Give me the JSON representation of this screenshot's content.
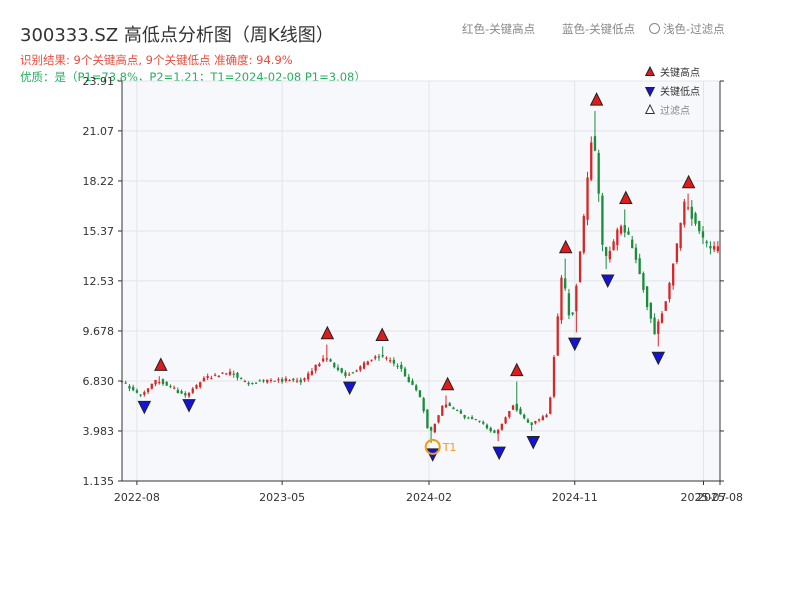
{
  "header": {
    "title": "300333.SZ 高低点分析图（周K线图）",
    "result_line": "识别结果: 9个关键高点, 9个关键低点  准确度: 94.9%",
    "quality_line": "优质：是（P1=73.8%，P2=1.21；T1=2024-02-08 P1=3.08）",
    "legend_red": "红色-关键高点",
    "legend_blue": "蓝色-关键低点",
    "legend_light": "浅色-过滤点"
  },
  "colors": {
    "up": "#d62728",
    "down": "#1a8c3a",
    "high_marker": "#e01b1b",
    "low_marker": "#1414d6",
    "t1_ring": "#f39c12",
    "plot_bg": "#f6f8fb",
    "grid": "#e1e5ea"
  },
  "chart_data": {
    "type": "candlestick",
    "title": "300333.SZ 高低点分析图（周K线图）",
    "ylim": [
      1.135,
      23.91
    ],
    "y_ticks": [
      1.135,
      3.983,
      6.83,
      9.678,
      12.53,
      15.37,
      18.22,
      21.07,
      23.91
    ],
    "y_tick_labels": [
      "1.135",
      "3.983",
      "6.830",
      "9.678",
      "12.53",
      "15.37",
      "18.22",
      "21.07",
      "23.91"
    ],
    "x_ticks": [
      "2022-08-01",
      "2023-05-01",
      "2024-02-01",
      "2024-11-01",
      "2025-07-01",
      "2025-08-01"
    ],
    "x_tick_labels": [
      "2022-08",
      "2023-05",
      "2024-02",
      "2024-11",
      "2025-07",
      "2025-08"
    ],
    "x_range": [
      "2022-07-04",
      "2025-08-01"
    ],
    "grid": true,
    "legend_position": "top-right",
    "legend": [
      {
        "label": "关键高点",
        "marker": "triangle-up",
        "color": "#e01b1b"
      },
      {
        "label": "关键低点",
        "marker": "triangle-down",
        "color": "#1414d6"
      },
      {
        "label": "过滤点",
        "marker": "triangle-up-hollow",
        "color": "#999999"
      }
    ],
    "trend": [
      [
        "2022-07-04",
        6.9
      ],
      [
        "2022-08-15",
        6.0
      ],
      [
        "2022-09-15",
        6.9
      ],
      [
        "2022-10-15",
        6.4
      ],
      [
        "2022-11-07",
        6.0
      ],
      [
        "2022-12-15",
        7.0
      ],
      [
        "2023-02-01",
        7.3
      ],
      [
        "2023-03-01",
        6.7
      ],
      [
        "2023-05-01",
        6.9
      ],
      [
        "2023-06-15",
        6.8
      ],
      [
        "2023-07-25",
        8.2
      ],
      [
        "2023-09-05",
        7.1
      ],
      [
        "2023-11-05",
        8.3
      ],
      [
        "2023-12-15",
        7.6
      ],
      [
        "2024-01-25",
        5.8
      ],
      [
        "2024-02-08",
        3.7
      ],
      [
        "2024-03-07",
        5.6
      ],
      [
        "2024-04-15",
        4.8
      ],
      [
        "2024-05-10",
        4.6
      ],
      [
        "2024-06-12",
        3.8
      ],
      [
        "2024-07-15",
        5.5
      ],
      [
        "2024-08-15",
        4.3
      ],
      [
        "2024-09-20",
        5.0
      ],
      [
        "2024-10-15",
        13.0
      ],
      [
        "2024-11-01",
        10.0
      ],
      [
        "2024-11-20",
        14.5
      ],
      [
        "2024-12-12",
        21.5
      ],
      [
        "2025-01-02",
        13.5
      ],
      [
        "2025-02-05",
        15.9
      ],
      [
        "2025-03-01",
        14.0
      ],
      [
        "2025-04-07",
        9.5
      ],
      [
        "2025-04-30",
        11.5
      ],
      [
        "2025-06-03",
        17.0
      ],
      [
        "2025-07-15",
        14.5
      ],
      [
        "2025-08-01",
        14.3
      ]
    ],
    "spikes": [
      [
        "2023-07-25",
        8.9
      ],
      [
        "2023-11-05",
        8.8
      ],
      [
        "2024-03-07",
        6.0
      ],
      [
        "2024-07-15",
        6.8
      ],
      [
        "2024-10-15",
        13.8
      ],
      [
        "2024-12-12",
        22.2
      ],
      [
        "2025-02-05",
        16.6
      ],
      [
        "2025-06-03",
        17.5
      ],
      [
        "2022-09-15",
        7.1
      ],
      [
        "2024-02-08",
        3.3
      ],
      [
        "2024-11-01",
        9.6
      ],
      [
        "2025-01-02",
        13.2
      ],
      [
        "2025-04-07",
        8.8
      ],
      [
        "2024-06-12",
        3.4
      ],
      [
        "2024-08-15",
        4.0
      ]
    ],
    "key_highs": [
      {
        "date": "2022-09-15",
        "price": 7.2
      },
      {
        "date": "2023-07-25",
        "price": 9.0
      },
      {
        "date": "2023-11-05",
        "price": 8.9
      },
      {
        "date": "2024-03-07",
        "price": 6.1
      },
      {
        "date": "2024-07-15",
        "price": 6.9
      },
      {
        "date": "2024-10-15",
        "price": 13.9
      },
      {
        "date": "2024-12-12",
        "price": 22.3
      },
      {
        "date": "2025-02-05",
        "price": 16.7
      },
      {
        "date": "2025-06-03",
        "price": 17.6
      }
    ],
    "key_lows": [
      {
        "date": "2022-08-15",
        "price": 5.9
      },
      {
        "date": "2022-11-07",
        "price": 6.0
      },
      {
        "date": "2023-09-05",
        "price": 7.0
      },
      {
        "date": "2024-02-08",
        "price": 3.2
      },
      {
        "date": "2024-06-12",
        "price": 3.3
      },
      {
        "date": "2024-08-15",
        "price": 3.9
      },
      {
        "date": "2024-11-01",
        "price": 9.5
      },
      {
        "date": "2025-01-02",
        "price": 13.1
      },
      {
        "date": "2025-04-07",
        "price": 8.7
      }
    ],
    "t1": {
      "label": "T1",
      "date": "2024-02-08",
      "price": 3.08
    }
  }
}
